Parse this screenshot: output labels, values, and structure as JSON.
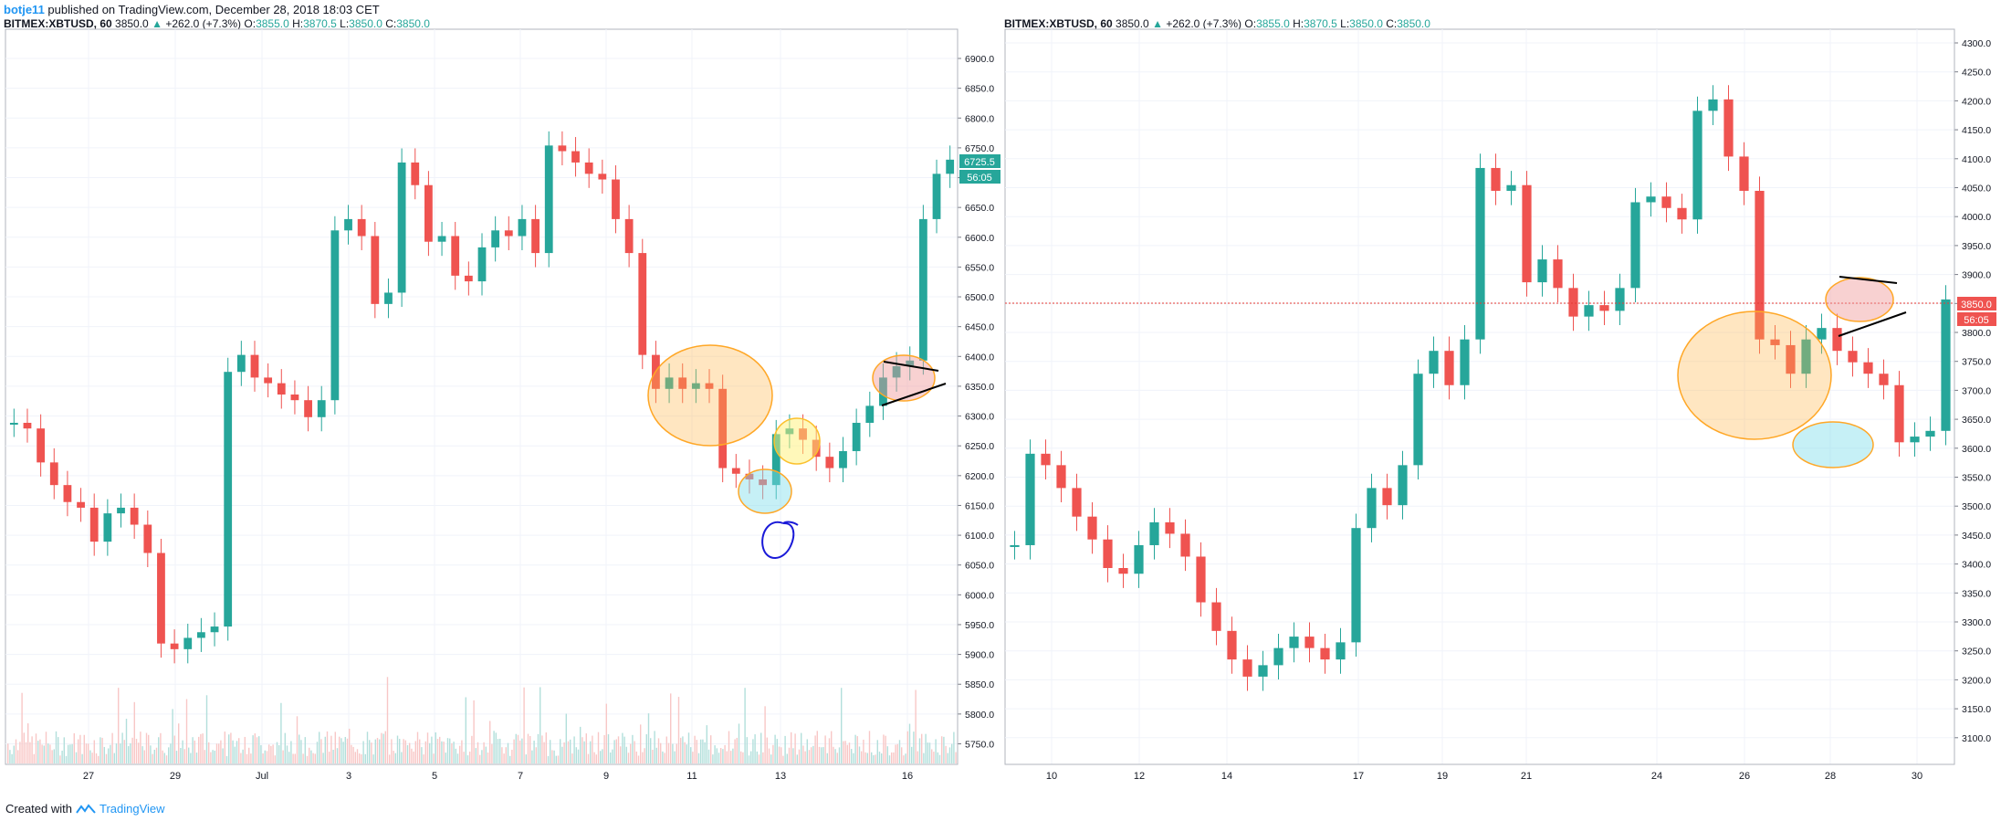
{
  "header": {
    "username": "botje11",
    "published": "published on TradingView.com, December 28, 2018 18:03 CET"
  },
  "footer": {
    "created_with": "Created with",
    "brand": "TradingView"
  },
  "colors": {
    "up": "#26a69a",
    "down": "#ef5350",
    "accent": "#2196f3",
    "price_line": "#e53935"
  },
  "legend": {
    "symbol": "BITMEX:XBTUSD, 60",
    "last": "3850.0",
    "change": "+262.0 (+7.3%)",
    "o_label": "O:",
    "o_val": "3855.0",
    "h_label": "H:",
    "h_val": "3870.5",
    "l_label": "L:",
    "l_val": "3850.0",
    "c_label": "C:",
    "c_val": "3850.0"
  },
  "left_chart": {
    "price_ticks": [
      "6900.0",
      "6850.0",
      "6800.0",
      "6750.0",
      "6700.0",
      "6650.0",
      "6600.0",
      "6550.0",
      "6500.0",
      "6450.0",
      "6400.0",
      "6350.0",
      "6300.0",
      "6250.0",
      "6200.0",
      "6150.0",
      "6100.0",
      "6050.0",
      "6000.0",
      "5950.0",
      "5900.0",
      "5850.0",
      "5800.0",
      "5750.0"
    ],
    "date_ticks": [
      "27",
      "29",
      "Jul",
      "3",
      "5",
      "7",
      "9",
      "11",
      "13",
      "16"
    ],
    "last_price_label": "6725.5",
    "countdown_label": "56:05"
  },
  "right_chart": {
    "price_ticks": [
      "4300.0",
      "4250.0",
      "4200.0",
      "4150.0",
      "4100.0",
      "4050.0",
      "4000.0",
      "3950.0",
      "3900.0",
      "3850.0",
      "3800.0",
      "3750.0",
      "3700.0",
      "3650.0",
      "3600.0",
      "3550.0",
      "3500.0",
      "3450.0",
      "3400.0",
      "3350.0",
      "3300.0",
      "3250.0",
      "3200.0",
      "3150.0",
      "3100.0"
    ],
    "date_ticks": [
      "10",
      "12",
      "14",
      "17",
      "19",
      "21",
      "24",
      "26",
      "28",
      "30"
    ],
    "last_price_label": "3850.0",
    "countdown_label": "56:05"
  },
  "chart_data": [
    {
      "type": "line",
      "series": [
        {
          "values": [
            6260,
            6250,
            6190,
            6150,
            6120,
            6110,
            6050,
            6100,
            6110,
            6080,
            6030,
            5870,
            5860,
            5880,
            5890,
            5900,
            6350,
            6380,
            6340,
            6330,
            6310,
            6300,
            6270,
            6300,
            6600,
            6620,
            6590,
            6470,
            6490,
            6720,
            6680,
            6580,
            6590,
            6520,
            6510,
            6570,
            6600,
            6590,
            6620,
            6560,
            6750,
            6740,
            6720,
            6700,
            6690,
            6620,
            6560,
            6380,
            6320,
            6340,
            6320,
            6330,
            6320,
            6180,
            6170,
            6160,
            6150,
            6240,
            6250,
            6230,
            6200,
            6180,
            6210,
            6260,
            6290,
            6340,
            6360,
            6370,
            6620,
            6700,
            6725
          ]
        }
      ],
      "ylim": [
        5700,
        6920
      ]
    },
    {
      "type": "line",
      "series": [
        {
          "values": [
            3420,
            3580,
            3560,
            3520,
            3470,
            3430,
            3380,
            3370,
            3420,
            3460,
            3440,
            3400,
            3320,
            3270,
            3220,
            3190,
            3210,
            3240,
            3260,
            3240,
            3220,
            3250,
            3450,
            3520,
            3490,
            3560,
            3720,
            3760,
            3700,
            3780,
            4080,
            4040,
            4050,
            3880,
            3920,
            3870,
            3820,
            3840,
            3830,
            3870,
            4020,
            4030,
            4010,
            3990,
            4180,
            4200,
            4100,
            4040,
            3780,
            3770,
            3720,
            3780,
            3800,
            3760,
            3740,
            3720,
            3700,
            3600,
            3610,
            3620,
            3850
          ]
        }
      ],
      "ylim": [
        3070,
        4310
      ]
    }
  ]
}
